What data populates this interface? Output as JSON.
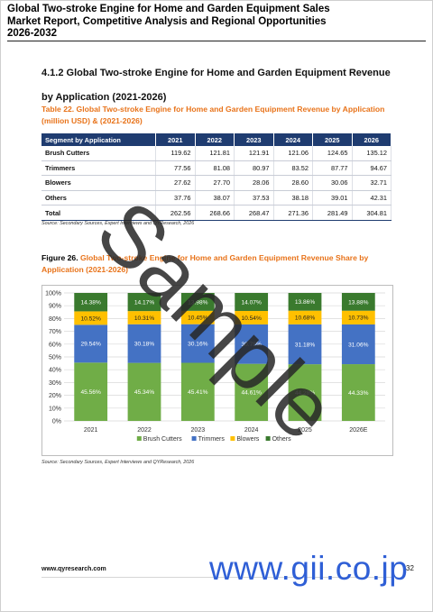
{
  "header": {
    "title": "Global Two-stroke Engine for Home and Garden Equipment Sales Market Report, Competitive Analysis and Regional Opportunities 2026-2032"
  },
  "section": {
    "heading": "4.1.2  Global Two-stroke Engine for Home and Garden Equipment Revenue by Application (2021-2026)"
  },
  "table": {
    "caption": "Table 22.  Global Two-stroke Engine for Home and Garden Equipment Revenue by Application (million USD) & (2021-2026)",
    "columns": [
      "Segment by Application",
      "2021",
      "2022",
      "2023",
      "2024",
      "2025",
      "2026"
    ],
    "rows": [
      {
        "label": "Brush Cutters",
        "cells": [
          "119.62",
          "121.81",
          "121.91",
          "121.06",
          "124.65",
          "135.12"
        ]
      },
      {
        "label": "Trimmers",
        "cells": [
          "77.56",
          "81.08",
          "80.97",
          "83.52",
          "87.77",
          "94.67"
        ]
      },
      {
        "label": "Blowers",
        "cells": [
          "27.62",
          "27.70",
          "28.06",
          "28.60",
          "30.06",
          "32.71"
        ]
      },
      {
        "label": "Others",
        "cells": [
          "37.76",
          "38.07",
          "37.53",
          "38.18",
          "39.01",
          "42.31"
        ]
      },
      {
        "label": "Total",
        "cells": [
          "262.56",
          "268.66",
          "268.47",
          "271.36",
          "281.49",
          "304.81"
        ]
      }
    ],
    "source": "Source: Secondary Sources, Expert Interviews and QYResearch, 2026"
  },
  "figure": {
    "number": "Figure 26.",
    "caption": "  Global Two-stroke Engine for Home and Garden Equipment Revenue Share by Application (2021-2026)",
    "source": "Source: Secondary Sources, Expert Interviews and QYResearch, 2026"
  },
  "chart_data": {
    "type": "bar",
    "stacked": true,
    "categories": [
      "2021",
      "2022",
      "2023",
      "2024",
      "2025",
      "2026E"
    ],
    "series": [
      {
        "name": "Brush Cutters",
        "color": "#70ad47",
        "values": [
          45.56,
          45.34,
          45.41,
          44.61,
          44.28,
          44.33
        ],
        "labels": [
          "45.56%",
          "45.34%",
          "45.41%",
          "44.61%",
          "44.28%",
          "44.33%"
        ]
      },
      {
        "name": "Trimmers",
        "color": "#4472c4",
        "values": [
          29.54,
          30.18,
          30.16,
          30.78,
          31.18,
          31.06
        ],
        "labels": [
          "29.54%",
          "30.18%",
          "30.16%",
          "30.78%",
          "31.18%",
          "31.06%"
        ]
      },
      {
        "name": "Blowers",
        "color": "#ffc000",
        "values": [
          10.52,
          10.31,
          10.45,
          10.54,
          10.68,
          10.73
        ],
        "labels": [
          "10.52%",
          "10.31%",
          "10.45%",
          "10.54%",
          "10.68%",
          "10.73%"
        ]
      },
      {
        "name": "Others",
        "color": "#3a7a2e",
        "values": [
          14.38,
          14.17,
          13.98,
          14.07,
          13.86,
          13.88
        ],
        "labels": [
          "14.38%",
          "14.17%",
          "13.98%",
          "14.07%",
          "13.86%",
          "13.88%"
        ]
      }
    ],
    "ylim": [
      0,
      100
    ],
    "yticks": [
      "0%",
      "10%",
      "20%",
      "30%",
      "40%",
      "50%",
      "60%",
      "70%",
      "80%",
      "90%",
      "100%"
    ],
    "legend_position": "bottom",
    "grid": true
  },
  "footer": {
    "url": "www.qyresearch.com",
    "page_number": "32"
  },
  "watermarks": {
    "sample": "Sample",
    "gii": "www.gii.co.jp"
  }
}
